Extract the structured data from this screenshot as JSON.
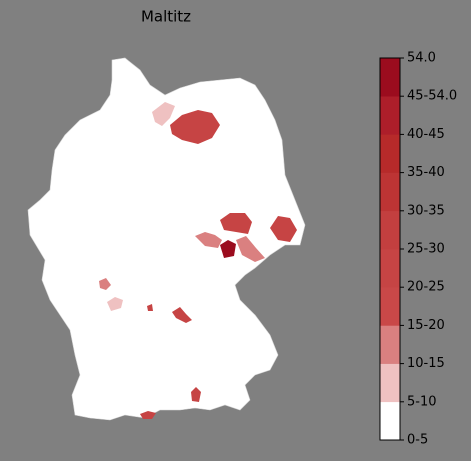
{
  "title": "Maltitz",
  "colorbar": {
    "ticks": [
      "0-5",
      "5-10",
      "10-15",
      "15-20",
      "20-25",
      "25-30",
      "30-35",
      "35-40",
      "40-45",
      "45-54.0",
      "54.0"
    ],
    "colors": [
      "#ffffff",
      "#efc1c1",
      "#da8080",
      "#c94848",
      "#c64444",
      "#c33f3f",
      "#bd3434",
      "#b72a2a",
      "#ad1e2a",
      "#9b0c1e"
    ]
  }
}
